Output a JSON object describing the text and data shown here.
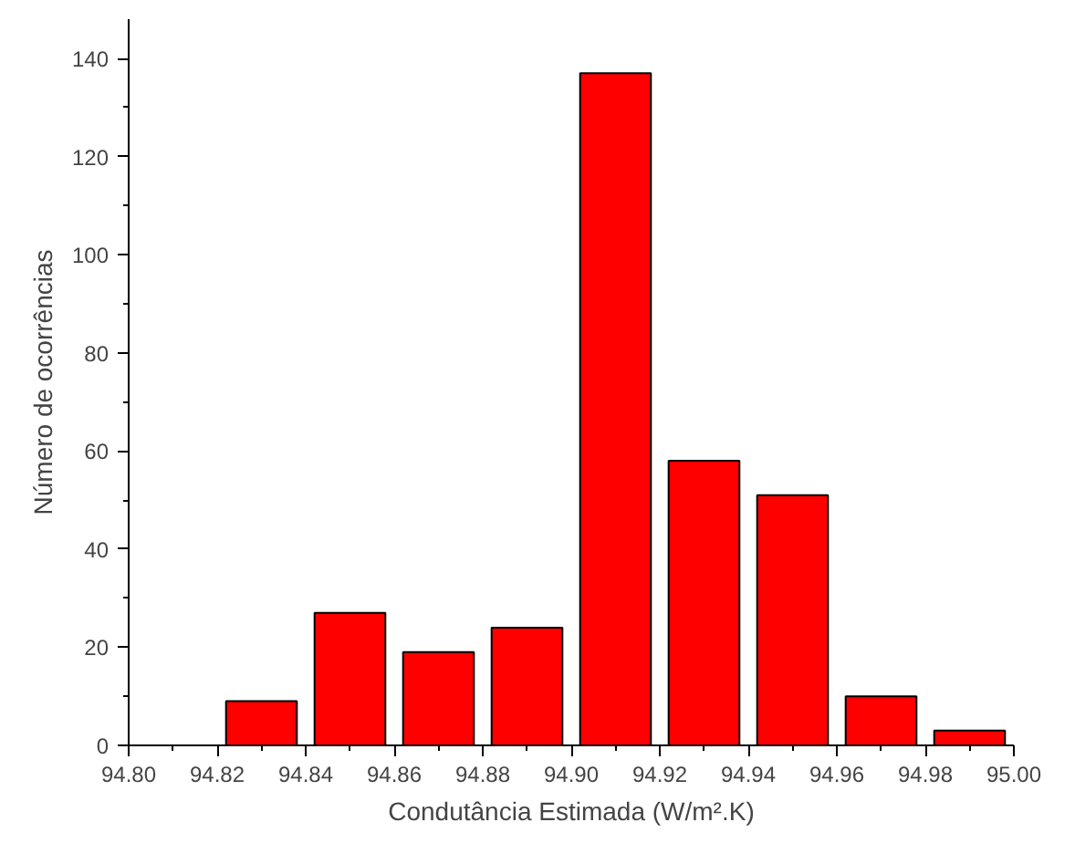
{
  "chart_data": {
    "type": "histogram",
    "xlabel": "Condutância Estimada (W/m².K)",
    "ylabel": "Número de ocorrências",
    "bins": [
      94.8,
      94.82,
      94.84,
      94.86,
      94.88,
      94.9,
      94.92,
      94.94,
      94.96,
      94.98,
      95.0
    ],
    "values": [
      0,
      9,
      27,
      19,
      24,
      137,
      58,
      51,
      10,
      3
    ],
    "color": "#ff0000",
    "xlim": [
      94.8,
      95.0
    ],
    "xticks": [
      {
        "value": 94.8,
        "label": "94.80"
      },
      {
        "value": 94.82,
        "label": "94.82"
      },
      {
        "value": 94.84,
        "label": "94.84"
      },
      {
        "value": 94.86,
        "label": "94.86"
      },
      {
        "value": 94.88,
        "label": "94.88"
      },
      {
        "value": 94.9,
        "label": "94.90"
      },
      {
        "value": 94.92,
        "label": "94.92"
      },
      {
        "value": 94.94,
        "label": "94.94"
      },
      {
        "value": 94.96,
        "label": "94.96"
      },
      {
        "value": 94.98,
        "label": "94.98"
      },
      {
        "value": 95.0,
        "label": "95.00"
      }
    ],
    "ylim": [
      0,
      148
    ],
    "yticks": [
      0,
      20,
      40,
      60,
      80,
      100,
      120,
      140
    ],
    "grid": false
  }
}
